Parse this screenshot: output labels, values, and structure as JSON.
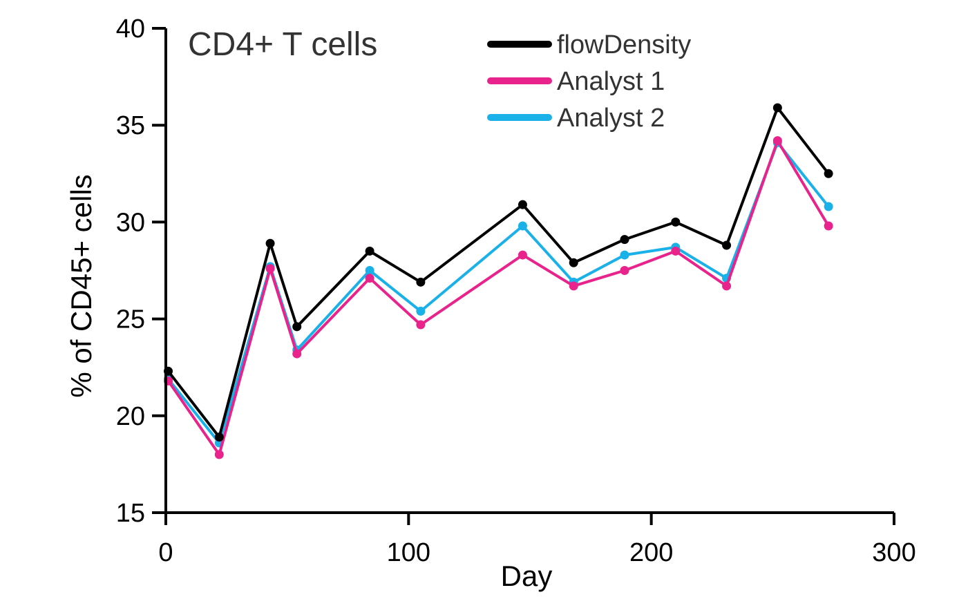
{
  "chart_data": {
    "type": "line",
    "title": "CD4+ T cells",
    "xlabel": "Day",
    "ylabel": "% of CD45+ cells",
    "xlim": [
      0,
      300
    ],
    "ylim": [
      15,
      40
    ],
    "xticks": [
      0,
      100,
      200,
      300
    ],
    "yticks": [
      15,
      20,
      25,
      30,
      35,
      40
    ],
    "grid": false,
    "legend_position": "top-right",
    "x": [
      1,
      22,
      43,
      54,
      84,
      105,
      147,
      168,
      189,
      210,
      231,
      252,
      273
    ],
    "series": [
      {
        "name": "flowDensity",
        "color": "#000000",
        "values": [
          22.3,
          18.9,
          28.9,
          24.6,
          28.5,
          26.9,
          30.9,
          27.9,
          29.1,
          30.0,
          28.8,
          35.9,
          32.5
        ]
      },
      {
        "name": "Analyst 1",
        "color": "#e8238c",
        "values": [
          21.8,
          18.0,
          27.6,
          23.2,
          27.1,
          24.7,
          28.3,
          26.7,
          27.5,
          28.5,
          26.7,
          34.2,
          29.8
        ]
      },
      {
        "name": "Analyst 2",
        "color": "#1ab0e8",
        "values": [
          21.9,
          18.6,
          27.7,
          23.4,
          27.5,
          25.4,
          29.8,
          26.9,
          28.3,
          28.7,
          27.1,
          34.1,
          30.8
        ]
      }
    ]
  }
}
